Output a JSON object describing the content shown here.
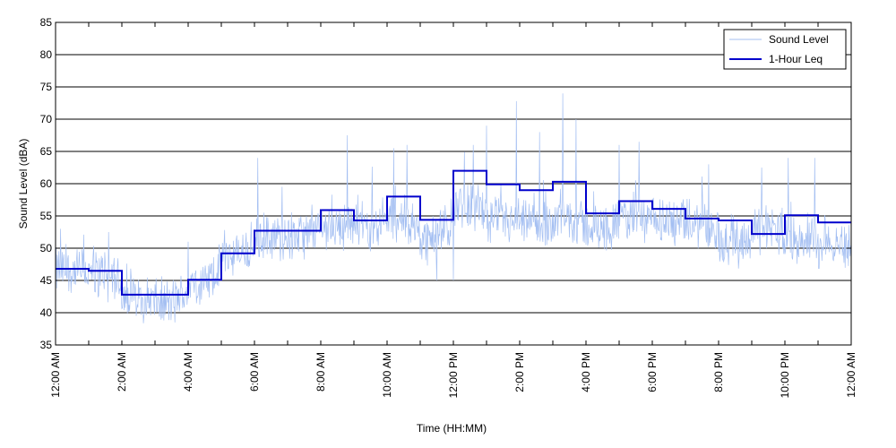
{
  "chart_data": {
    "type": "line",
    "title": "",
    "xlabel": "Time (HH:MM)",
    "ylabel": "Sound Level (dBA)",
    "ylim": [
      35,
      85
    ],
    "xlim": [
      0,
      24
    ],
    "yticks": [
      "35",
      "40",
      "45",
      "50",
      "55",
      "60",
      "65",
      "70",
      "75",
      "80",
      "85"
    ],
    "xticks": [
      {
        "hour": 0,
        "label": "12:00 AM"
      },
      {
        "hour": 2,
        "label": "2:00 AM"
      },
      {
        "hour": 4,
        "label": "4:00 AM"
      },
      {
        "hour": 6,
        "label": "6:00 AM"
      },
      {
        "hour": 8,
        "label": "8:00 AM"
      },
      {
        "hour": 10,
        "label": "10:00 AM"
      },
      {
        "hour": 12,
        "label": "12:00 PM"
      },
      {
        "hour": 14,
        "label": "2:00 PM"
      },
      {
        "hour": 16,
        "label": "4:00 PM"
      },
      {
        "hour": 18,
        "label": "6:00 PM"
      },
      {
        "hour": 20,
        "label": "8:00 PM"
      },
      {
        "hour": 22,
        "label": "10:00 PM"
      },
      {
        "hour": 24,
        "label": "12:00 AM"
      }
    ],
    "minor_xticks": [
      1,
      3,
      5,
      7,
      9,
      11,
      13,
      15,
      17,
      19,
      21,
      23
    ],
    "grid": "horizontal",
    "legend": {
      "placement": "top-right"
    },
    "series": [
      {
        "name": "Sound Level",
        "color": "#a4bff2",
        "width": 0.7,
        "kind": "noisy-trace",
        "hourly_base": [
          46.5,
          46,
          42.5,
          41.5,
          44.5,
          49,
          51.5,
          52,
          53.5,
          53.5,
          54.5,
          51.5,
          57,
          54,
          53.5,
          54.5,
          53,
          54.5,
          54,
          53.5,
          51,
          53,
          51.5,
          50.5
        ],
        "noise_amplitude": 4.5,
        "peaks": [
          {
            "hour": 0.15,
            "value": 53
          },
          {
            "hour": 1.6,
            "value": 52.5
          },
          {
            "hour": 4.0,
            "value": 51
          },
          {
            "hour": 6.1,
            "value": 64
          },
          {
            "hour": 8.8,
            "value": 67.5
          },
          {
            "hour": 10.2,
            "value": 65.5
          },
          {
            "hour": 10.6,
            "value": 66
          },
          {
            "hour": 12.6,
            "value": 66
          },
          {
            "hour": 13.0,
            "value": 69
          },
          {
            "hour": 13.9,
            "value": 72.8
          },
          {
            "hour": 14.6,
            "value": 68
          },
          {
            "hour": 15.3,
            "value": 74
          },
          {
            "hour": 15.7,
            "value": 70
          },
          {
            "hour": 17.0,
            "value": 66
          },
          {
            "hour": 17.6,
            "value": 66.5
          },
          {
            "hour": 19.7,
            "value": 63
          },
          {
            "hour": 21.3,
            "value": 62.5
          },
          {
            "hour": 22.1,
            "value": 64
          },
          {
            "hour": 22.9,
            "value": 64
          },
          {
            "hour": 12.0,
            "value": 45
          },
          {
            "hour": 11.5,
            "value": 45
          }
        ]
      },
      {
        "name": "1-Hour Leq",
        "color": "#0000cc",
        "width": 2,
        "kind": "step",
        "values": [
          46.8,
          46.5,
          42.8,
          42.8,
          45.1,
          49.2,
          52.7,
          52.7,
          55.9,
          54.3,
          58,
          54.4,
          62,
          59.9,
          59,
          60.3,
          55.4,
          57.3,
          56.1,
          54.6,
          54.3,
          52.2,
          55.1,
          54
        ]
      }
    ]
  }
}
